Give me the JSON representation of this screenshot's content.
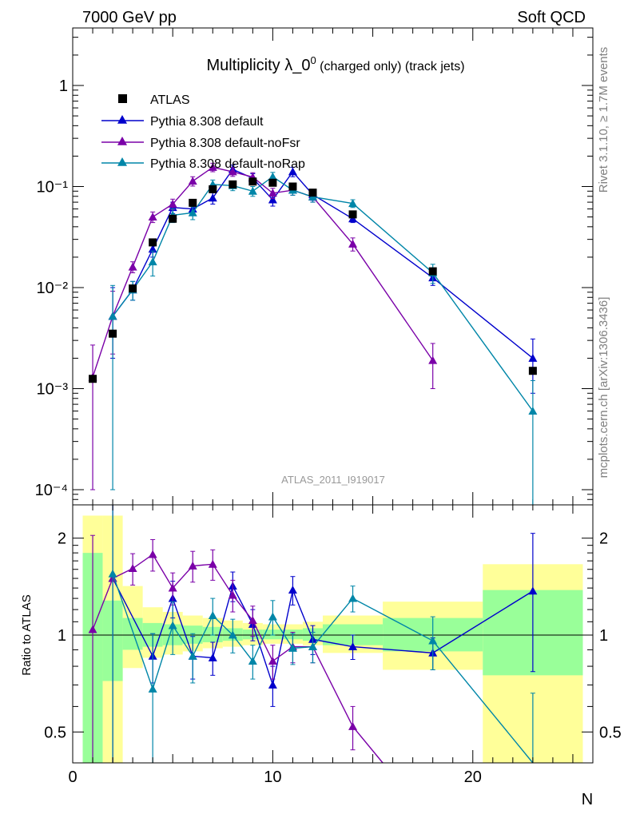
{
  "header": {
    "left": "7000 GeV pp",
    "right": "Soft QCD"
  },
  "side": {
    "rivet": "Rivet 3.1.10, ≥ 1.7M events",
    "source": "mcplots.cern.ch [arXiv:1306.3436]"
  },
  "analysis_id": "ATLAS_2011_I919017",
  "colors": {
    "atlas": "#000000",
    "default": "#0000cc",
    "nofsr": "#7a00a8",
    "norap": "#0086a8",
    "band_inner": "#99ff99",
    "band_outer": "#ffff99"
  },
  "chart_data": [
    {
      "type": "scatter",
      "panel": "main",
      "title_main": "Multiplicity λ_0",
      "title_sup": "0",
      "title_suffix": " (charged only) (track jets)",
      "xlim": [
        0,
        26
      ],
      "ylim": [
        7e-05,
        3.5
      ],
      "yscale": "log",
      "ytick_labels": [
        "10⁻⁴",
        "10⁻³",
        "10⁻²",
        "10⁻¹",
        "1"
      ],
      "legend": {
        "position": "top-left",
        "entries": [
          "ATLAS",
          "Pythia 8.308 default",
          "Pythia 8.308 default-noFsr",
          "Pythia 8.308 default-noRap"
        ]
      },
      "series": [
        {
          "name": "ATLAS",
          "x": [
            1,
            2,
            3,
            4,
            5,
            6,
            7,
            8,
            9,
            10,
            11,
            12,
            14,
            18,
            23
          ],
          "y": [
            0.00125,
            0.0035,
            0.0098,
            0.028,
            0.048,
            0.069,
            0.094,
            0.105,
            0.112,
            0.109,
            0.1,
            0.087,
            0.053,
            0.0145,
            0.0015
          ]
        },
        {
          "name": "Pythia 8.308 default",
          "x": [
            2,
            3,
            4,
            5,
            6,
            7,
            8,
            9,
            10,
            11,
            12,
            14,
            18,
            23
          ],
          "y": [
            0.0052,
            0.0095,
            0.024,
            0.062,
            0.06,
            0.077,
            0.148,
            0.121,
            0.074,
            0.14,
            0.083,
            0.048,
            0.0125,
            0.002
          ],
          "err_low": [
            0.0032,
            0.002,
            0.004,
            0.008,
            0.008,
            0.01,
            0.015,
            0.013,
            0.01,
            0.015,
            0.01,
            0.004,
            0.002,
            0.0011
          ],
          "err_high": [
            0.0048,
            0.002,
            0.004,
            0.008,
            0.008,
            0.01,
            0.015,
            0.013,
            0.01,
            0.015,
            0.01,
            0.004,
            0.002,
            0.0011
          ]
        },
        {
          "name": "Pythia 8.308 default-noFsr",
          "x": [
            1,
            2,
            3,
            4,
            5,
            6,
            7,
            8,
            9,
            10,
            11,
            12,
            14,
            18
          ],
          "y": [
            0.0013,
            0.0052,
            0.016,
            0.05,
            0.067,
            0.113,
            0.155,
            0.14,
            0.124,
            0.086,
            0.092,
            0.079,
            0.027,
            0.0019
          ],
          "err_low": [
            0.0012,
            0.003,
            0.002,
            0.006,
            0.008,
            0.012,
            0.015,
            0.014,
            0.013,
            0.01,
            0.01,
            0.009,
            0.004,
            0.0009
          ],
          "err_high": [
            0.0014,
            0.004,
            0.002,
            0.006,
            0.008,
            0.012,
            0.015,
            0.014,
            0.013,
            0.01,
            0.01,
            0.009,
            0.004,
            0.0009
          ]
        },
        {
          "name": "Pythia 8.308 default-noRap",
          "x": [
            2,
            3,
            4,
            5,
            6,
            7,
            8,
            9,
            10,
            11,
            12,
            14,
            18,
            23
          ],
          "y": [
            0.0052,
            0.0095,
            0.018,
            0.052,
            0.055,
            0.105,
            0.102,
            0.09,
            0.125,
            0.092,
            0.079,
            0.068,
            0.014,
            0.0006
          ],
          "err_low": [
            0.0051,
            0.002,
            0.005,
            0.008,
            0.008,
            0.011,
            0.011,
            0.01,
            0.013,
            0.01,
            0.009,
            0.006,
            0.003,
            0.0006
          ],
          "err_high": [
            0.0053,
            0.002,
            0.005,
            0.008,
            0.008,
            0.011,
            0.011,
            0.01,
            0.013,
            0.01,
            0.009,
            0.006,
            0.003,
            0.0006
          ]
        }
      ]
    },
    {
      "type": "scatter",
      "panel": "ratio",
      "ylabel": "Ratio to ATLAS",
      "xlabel": "N",
      "xlim": [
        0,
        26
      ],
      "ylim": [
        0.35,
        2.35
      ],
      "yscale": "log",
      "xticks": [
        0,
        10,
        20
      ],
      "yticks": [
        0.5,
        1,
        2
      ],
      "bands": {
        "edges": [
          0.5,
          1.5,
          2.5,
          3.5,
          4.5,
          5.5,
          6.5,
          7.5,
          8.5,
          9.5,
          10.5,
          11.5,
          12.5,
          15.5,
          20.5,
          25.5
        ],
        "inner_low": [
          0.0,
          0.72,
          0.9,
          0.92,
          0.93,
          0.94,
          0.95,
          0.96,
          0.97,
          0.97,
          0.97,
          0.96,
          0.93,
          0.89,
          0.75
        ],
        "inner_high": [
          1.8,
          1.28,
          1.13,
          1.09,
          1.08,
          1.07,
          1.06,
          1.05,
          1.04,
          1.04,
          1.04,
          1.05,
          1.08,
          1.13,
          1.38
        ],
        "outer_low": [
          0.0,
          0.0,
          0.79,
          0.85,
          0.87,
          0.89,
          0.91,
          0.92,
          0.93,
          0.94,
          0.94,
          0.93,
          0.88,
          0.78,
          0.37
        ],
        "outer_high": [
          2.35,
          2.35,
          1.42,
          1.22,
          1.18,
          1.15,
          1.13,
          1.11,
          1.09,
          1.08,
          1.08,
          1.1,
          1.15,
          1.27,
          1.66
        ]
      },
      "series": [
        {
          "name": "Pythia 8.308 default",
          "x": [
            2,
            4,
            5,
            6,
            7,
            8,
            9,
            10,
            11,
            12,
            14,
            18,
            23
          ],
          "y": [
            1.5,
            0.86,
            1.3,
            0.86,
            0.85,
            1.42,
            1.08,
            0.7,
            1.38,
            0.97,
            0.92,
            0.88,
            1.37
          ],
          "err_low": [
            1.2,
            0.15,
            0.17,
            0.13,
            0.1,
            0.15,
            0.12,
            0.1,
            0.14,
            0.1,
            0.08,
            0.1,
            0.6
          ],
          "err_high": [
            1.2,
            0.15,
            0.17,
            0.13,
            0.1,
            0.15,
            0.12,
            0.1,
            0.14,
            0.1,
            0.08,
            0.1,
            0.7
          ]
        },
        {
          "name": "Pythia 8.308 default-noFsr",
          "x": [
            1,
            2,
            3,
            4,
            5,
            6,
            7,
            8,
            9,
            10,
            11,
            12,
            14,
            15.5
          ],
          "y": [
            1.04,
            1.5,
            1.61,
            1.78,
            1.4,
            1.64,
            1.66,
            1.33,
            1.11,
            0.83,
            0.92,
            0.92,
            0.52,
            0.35
          ],
          "err_low": [
            1.0,
            1.2,
            0.18,
            0.2,
            0.16,
            0.18,
            0.18,
            0.15,
            0.12,
            0.1,
            0.1,
            0.1,
            0.08,
            0
          ],
          "err_high": [
            1.0,
            1.2,
            0.18,
            0.2,
            0.16,
            0.18,
            0.18,
            0.15,
            0.12,
            0.1,
            0.1,
            0.1,
            0.08,
            0
          ]
        },
        {
          "name": "Pythia 8.308 default-noRap",
          "x": [
            2,
            4,
            5,
            6,
            7,
            8,
            9,
            10,
            11,
            12,
            14,
            18,
            23
          ],
          "y": [
            1.55,
            0.68,
            1.07,
            0.86,
            1.15,
            1.0,
            0.83,
            1.14,
            0.91,
            0.92,
            1.3,
            0.96,
            0.36
          ],
          "err_low": [
            1.2,
            0.33,
            0.2,
            0.15,
            0.15,
            0.12,
            0.1,
            0.14,
            0.1,
            0.1,
            0.12,
            0.18,
            0.3
          ],
          "err_high": [
            1.2,
            0.33,
            0.2,
            0.15,
            0.15,
            0.12,
            0.1,
            0.14,
            0.1,
            0.1,
            0.12,
            0.18,
            0.3
          ]
        }
      ]
    }
  ]
}
